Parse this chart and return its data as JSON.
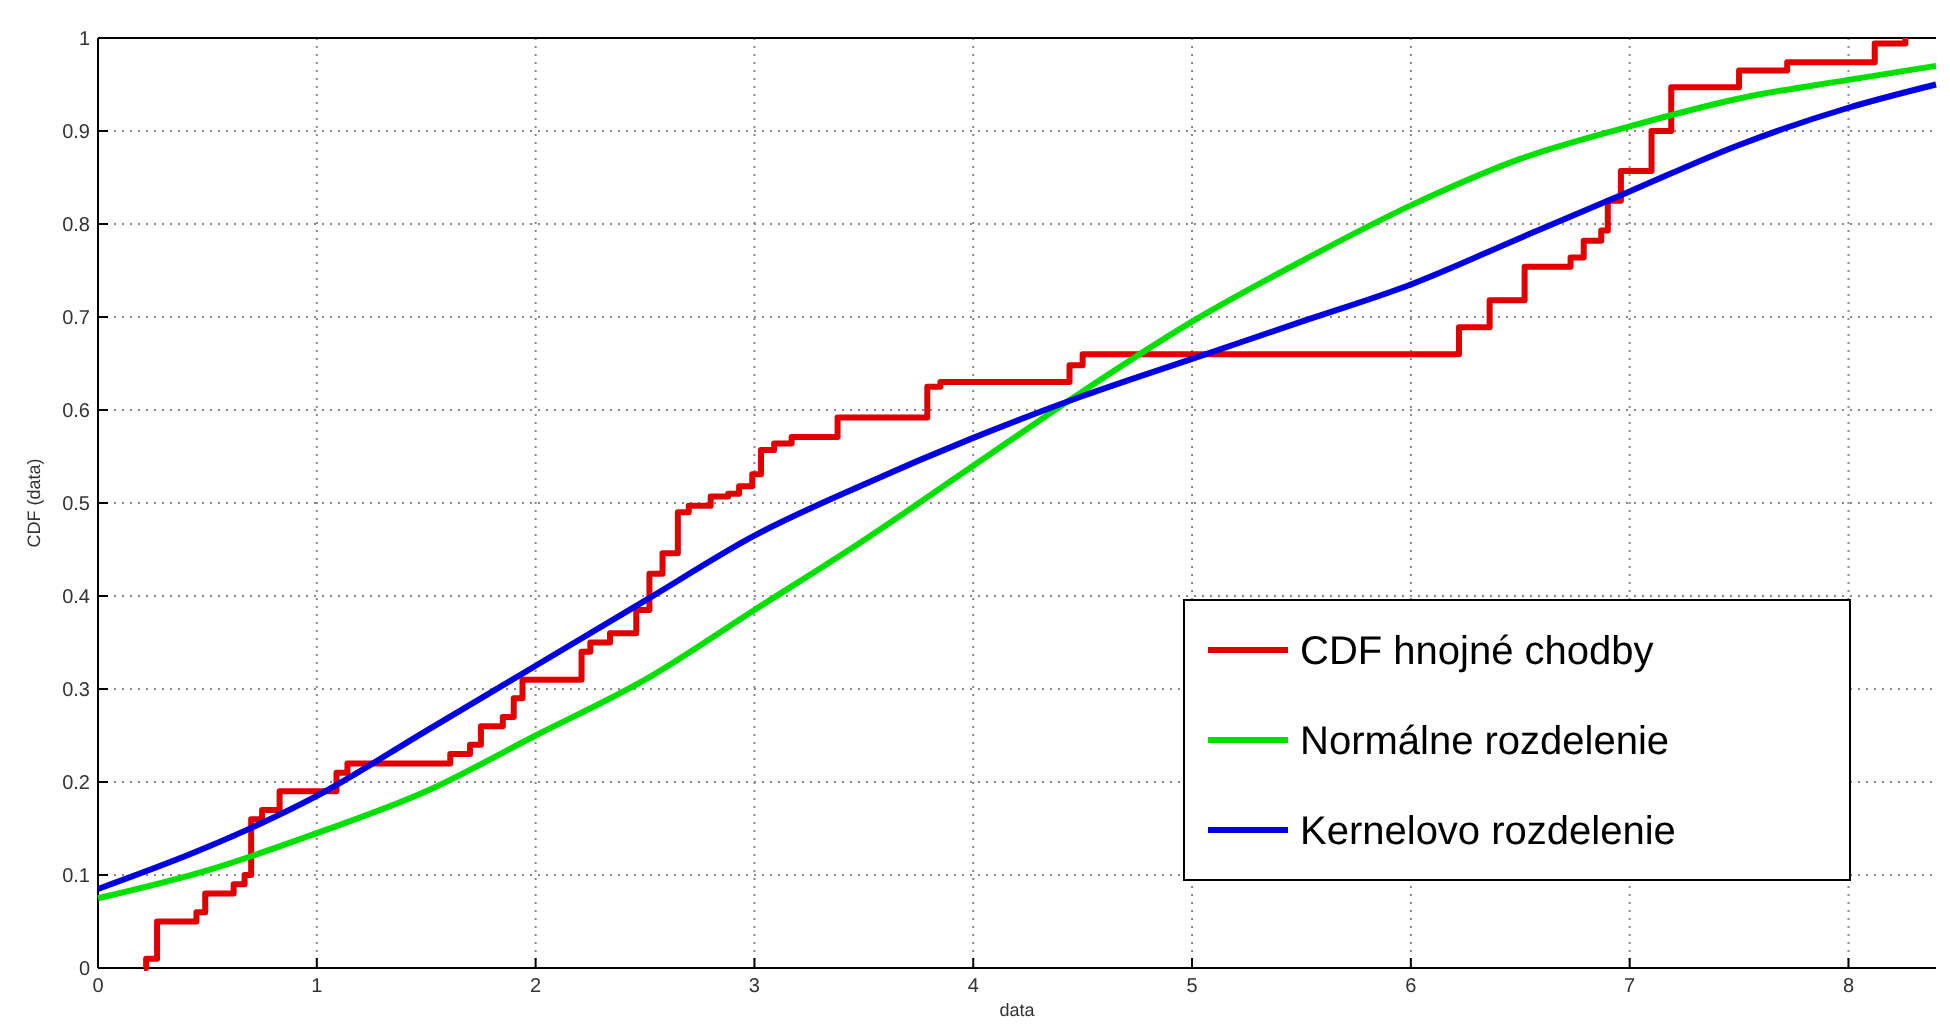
{
  "chart_data": {
    "type": "line",
    "xlabel": "data",
    "ylabel": "CDF (data)",
    "xlim": [
      0,
      8.4
    ],
    "ylim": [
      0,
      1
    ],
    "xticks": [
      0,
      1,
      2,
      3,
      4,
      5,
      6,
      7,
      8
    ],
    "yticks": [
      0,
      0.1,
      0.2,
      0.3,
      0.4,
      0.5,
      0.6,
      0.7,
      0.8,
      0.9,
      1
    ],
    "grid": true,
    "legend": "bottom right",
    "line_style": "solid",
    "marker": "none",
    "series": [
      {
        "name": "CDF hnojné chodby",
        "type": "step",
        "color": "#e00000",
        "x": [
          0.21,
          0.22,
          0.27,
          0.45,
          0.49,
          0.62,
          0.67,
          0.7,
          0.75,
          0.83,
          1.09,
          1.14,
          1.61,
          1.7,
          1.75,
          1.85,
          1.9,
          1.94,
          2.21,
          2.25,
          2.34,
          2.46,
          2.52,
          2.58,
          2.65,
          2.7,
          2.8,
          2.88,
          2.93,
          2.99,
          3.03,
          3.09,
          3.17,
          3.38,
          3.79,
          3.85,
          4.44,
          4.5,
          6.22,
          6.36,
          6.52,
          6.73,
          6.79,
          6.87,
          6.9,
          6.96,
          7.1,
          7.19,
          7.5,
          7.72,
          8.12,
          8.26
        ],
        "values": [
          0,
          0.01,
          0.05,
          0.06,
          0.08,
          0.09,
          0.1,
          0.16,
          0.17,
          0.19,
          0.21,
          0.22,
          0.23,
          0.24,
          0.26,
          0.27,
          0.29,
          0.31,
          0.34,
          0.35,
          0.36,
          0.385,
          0.424,
          0.446,
          0.49,
          0.497,
          0.507,
          0.51,
          0.518,
          0.531,
          0.557,
          0.564,
          0.571,
          0.592,
          0.625,
          0.63,
          0.648,
          0.66,
          0.689,
          0.718,
          0.754,
          0.764,
          0.782,
          0.793,
          0.825,
          0.857,
          0.9,
          0.947,
          0.965,
          0.974,
          0.994,
          1.0
        ]
      },
      {
        "name": "Normálne rozdelenie",
        "color": "#00e000",
        "x": [
          0,
          0.5,
          1,
          1.5,
          2,
          2.5,
          3,
          3.5,
          4,
          4.5,
          5,
          5.5,
          6,
          6.5,
          7,
          7.5,
          8,
          8.4
        ],
        "values": [
          0.075,
          0.105,
          0.145,
          0.19,
          0.25,
          0.31,
          0.385,
          0.46,
          0.54,
          0.62,
          0.695,
          0.76,
          0.82,
          0.87,
          0.905,
          0.935,
          0.955,
          0.97
        ]
      },
      {
        "name": "Kernelovo rozdelenie",
        "color": "#0000e0",
        "x": [
          0,
          0.5,
          1,
          1.5,
          2,
          2.5,
          3,
          3.5,
          4,
          4.5,
          5,
          5.5,
          6,
          6.5,
          7,
          7.5,
          8,
          8.4
        ],
        "values": [
          0.085,
          0.13,
          0.185,
          0.255,
          0.325,
          0.395,
          0.465,
          0.52,
          0.57,
          0.615,
          0.655,
          0.695,
          0.735,
          0.785,
          0.835,
          0.885,
          0.925,
          0.95
        ]
      }
    ]
  }
}
